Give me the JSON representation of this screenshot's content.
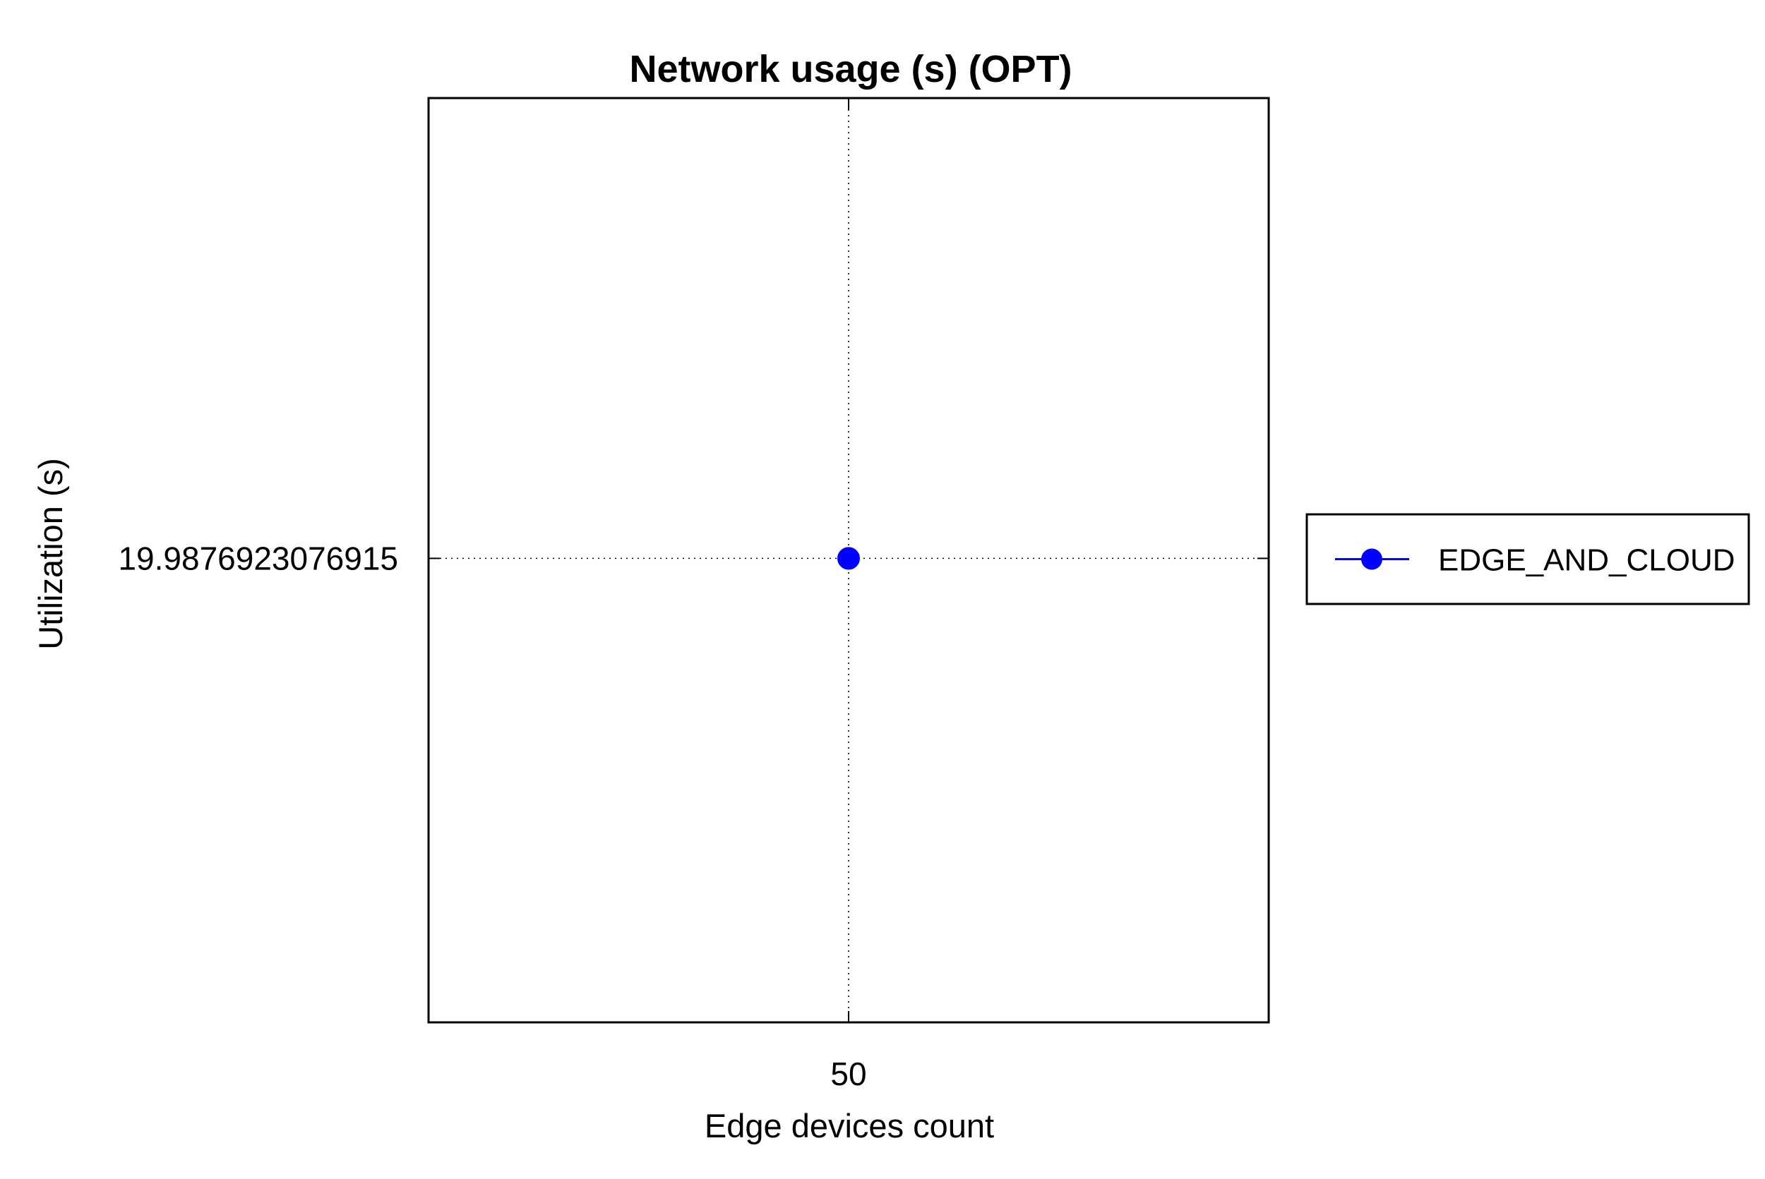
{
  "chart_data": {
    "type": "line",
    "title": "Network usage (s) (OPT)",
    "xlabel": "Edge devices count",
    "ylabel": "Utilization (s)",
    "x_ticks": [
      "50"
    ],
    "y_ticks": [
      "19.9876923076915"
    ],
    "x": [
      50
    ],
    "series": [
      {
        "name": "EDGE_AND_CLOUD",
        "values": [
          19.9876923076915
        ],
        "color": "#0000ff",
        "marker": "circle"
      }
    ],
    "grid": true,
    "grid_style": "dotted",
    "legend_position": "right"
  }
}
